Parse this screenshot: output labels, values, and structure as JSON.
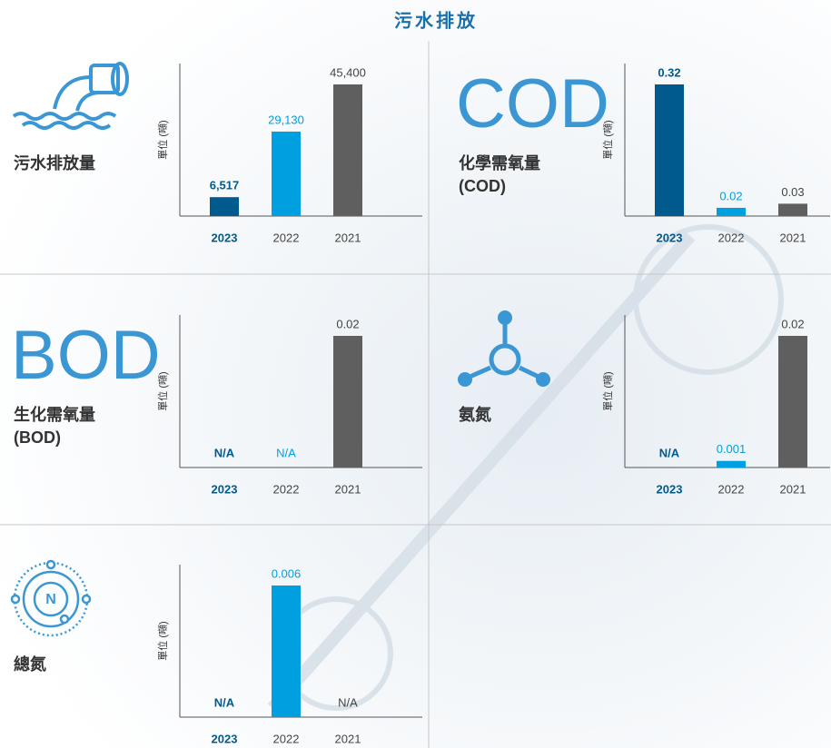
{
  "title": "污水排放",
  "chart_data": [
    {
      "type": "bar",
      "title": "污水排放量",
      "y_label": "單位 (噸)",
      "categories": [
        "2023",
        "2022",
        "2021"
      ],
      "values": [
        6517,
        29130,
        45400
      ],
      "value_labels": [
        "6,517",
        "29,130",
        "45,400"
      ],
      "colors": [
        "#005a8e",
        "#00a0e0",
        "#5f5f5f"
      ]
    },
    {
      "type": "bar",
      "icon_text": "COD",
      "title": "化學需氧量",
      "subtitle": "(COD)",
      "y_label": "單位 (噸)",
      "categories": [
        "2023",
        "2022",
        "2021"
      ],
      "values": [
        0.32,
        0.02,
        0.03
      ],
      "colors": [
        "#005a8e",
        "#00a0e0",
        "#5f5f5f"
      ]
    },
    {
      "type": "bar",
      "icon_text": "BOD",
      "title": "生化需氧量",
      "subtitle": "(BOD)",
      "y_label": "單位 (噸)",
      "categories": [
        "2023",
        "2022",
        "2021"
      ],
      "values": [
        null,
        null,
        0.02
      ],
      "value_labels": [
        "N/A",
        "N/A",
        "0.02"
      ],
      "colors": [
        "#005a8e",
        "#00a0e0",
        "#5f5f5f"
      ]
    },
    {
      "type": "bar",
      "title": "氨氮",
      "y_label": "單位 (噸)",
      "categories": [
        "2023",
        "2022",
        "2021"
      ],
      "values": [
        null,
        0.001,
        0.02
      ],
      "value_labels": [
        "N/A",
        "0.001",
        "0.02"
      ],
      "colors": [
        "#005a8e",
        "#00a0e0",
        "#5f5f5f"
      ]
    },
    {
      "type": "bar",
      "title": "總氮",
      "y_label": "單位 (噸)",
      "categories": [
        "2023",
        "2022",
        "2021"
      ],
      "values": [
        null,
        0.006,
        null
      ],
      "value_labels": [
        "N/A",
        "0.006",
        "N/A"
      ],
      "colors": [
        "#005a8e",
        "#00a0e0",
        "#5f5f5f"
      ]
    }
  ]
}
